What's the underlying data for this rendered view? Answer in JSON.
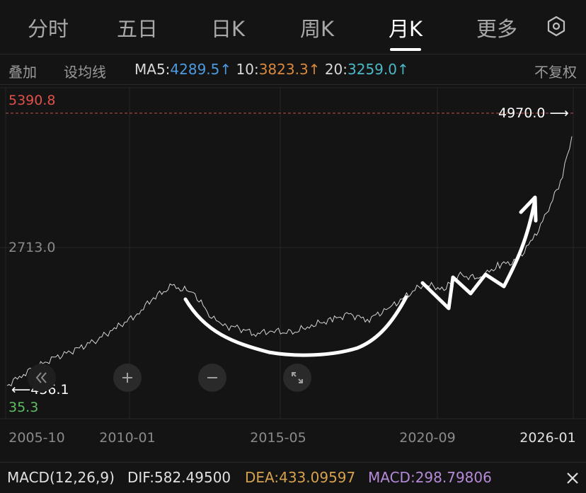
{
  "tabs": [
    {
      "label": "分时"
    },
    {
      "label": "五日"
    },
    {
      "label": "日K"
    },
    {
      "label": "周K"
    },
    {
      "label": "月K"
    },
    {
      "label": "更多"
    }
  ],
  "active_tab": "月K",
  "toolbar": {
    "overlay_label": "叠加",
    "set_ma_label": "设均线",
    "ma5_label": "MA5:",
    "ma5_value": "4289.5↑",
    "ma10_label": "10:",
    "ma10_value": "3823.3↑",
    "ma20_label": "20:",
    "ma20_value": "3259.0↑",
    "adjust_label": "不复权"
  },
  "chart": {
    "high_label": "5390.8",
    "mid_label": "2713.0",
    "low_label": "35.3",
    "last_price_label": "4970.0",
    "first_price_label": "456.1",
    "x_labels": [
      "2005-10",
      "2010-01",
      "2015-05",
      "2020-09",
      "2026-01"
    ]
  },
  "chart_data": {
    "type": "line",
    "title": "",
    "ylim": [
      35.3,
      5390.8
    ],
    "y_ticks": [
      5390.8,
      2713.0,
      35.3
    ],
    "x_ticks": [
      "2005-10",
      "2010-01",
      "2015-05",
      "2020-09",
      "2026-01"
    ],
    "series": [
      {
        "x": [
          "2005-10",
          "2006-06",
          "2007-06",
          "2008-06",
          "2009-01",
          "2009-09",
          "2010-06",
          "2011-01",
          "2011-09",
          "2012-06",
          "2013-01",
          "2013-06",
          "2014-01",
          "2014-09",
          "2015-05",
          "2015-12",
          "2016-09",
          "2017-06",
          "2018-01",
          "2018-09",
          "2019-06",
          "2020-01",
          "2020-09",
          "2021-06",
          "2022-01",
          "2022-09",
          "2023-06",
          "2024-01",
          "2024-09",
          "2025-03",
          "2025-09",
          "2026-01"
        ],
        "values": [
          456,
          700,
          950,
          1150,
          1300,
          1500,
          1750,
          2050,
          2250,
          2150,
          1750,
          1550,
          1500,
          1400,
          1450,
          1400,
          1550,
          1650,
          1750,
          1650,
          1850,
          2050,
          2300,
          2200,
          2450,
          2400,
          2650,
          2700,
          3150,
          3650,
          4250,
          4970
        ]
      }
    ],
    "last_price": 4970.0
  },
  "macd": {
    "label": "MACD(12,26,9)",
    "dif": "DIF:582.49500",
    "dea": "DEA:433.09597",
    "macd": "MACD:298.79806"
  },
  "colors": {
    "background": "#141414",
    "high_red": "#e0514a",
    "low_green": "#5fbf64",
    "ma5_blue": "#4c9ae0",
    "ma10_orange": "#d9893e",
    "ma20_cyan": "#4cb8c7",
    "dea_gold": "#d6a14d",
    "macd_purple": "#b58ad8"
  }
}
